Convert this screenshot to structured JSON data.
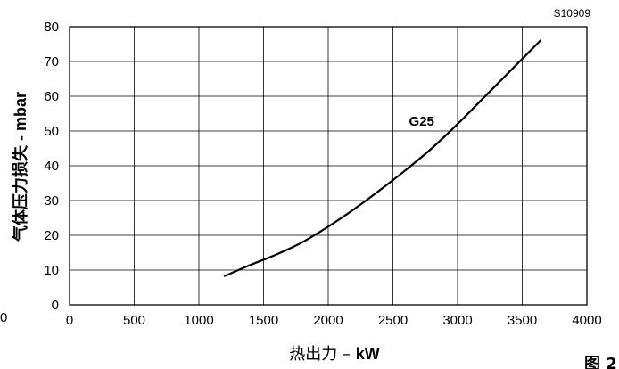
{
  "figure_code": "S10909",
  "figure_label_fragment": "图 2",
  "stray_mark": "0",
  "chart_data": {
    "type": "line",
    "x_range": [
      0,
      4000
    ],
    "y_range": [
      0,
      80
    ],
    "x_ticks": [
      "0",
      "500",
      "1000",
      "1500",
      "2000",
      "2500",
      "3000",
      "3500",
      "4000"
    ],
    "y_ticks": [
      "0",
      "10",
      "20",
      "30",
      "40",
      "50",
      "60",
      "70",
      "80"
    ],
    "grid": true,
    "xlabel": {
      "main": "热出力 – ",
      "unit": "kW"
    },
    "ylabel": "气体压力损失 - mbar",
    "series": [
      {
        "name": "G25",
        "x": [
          1200,
          1400,
          1600,
          1800,
          2000,
          2200,
          2400,
          2600,
          2800,
          3000,
          3200,
          3400,
          3640
        ],
        "y": [
          8.3,
          11.5,
          14.5,
          18.0,
          22.5,
          27.5,
          33.0,
          38.8,
          45.0,
          52.0,
          59.5,
          67.0,
          76.0
        ]
      }
    ]
  }
}
